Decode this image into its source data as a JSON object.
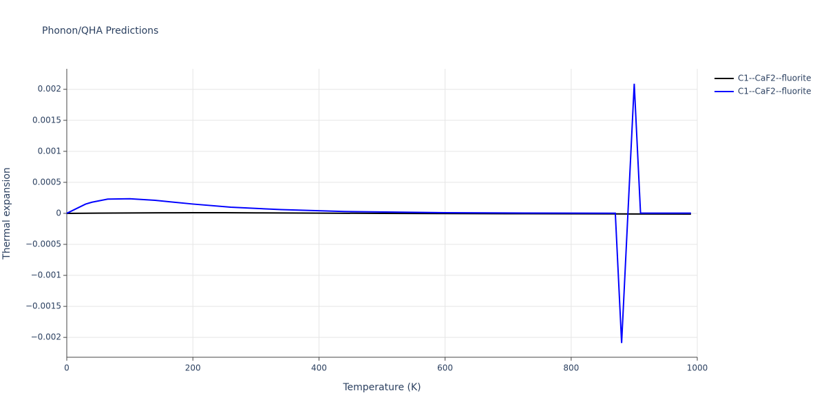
{
  "chart_data": {
    "type": "line",
    "title": "Phonon/QHA Predictions",
    "x_label": "Temperature (K)",
    "y_label": "Thermal expansion",
    "xlim": [
      0,
      1000
    ],
    "ylim": [
      -0.00232,
      0.00233
    ],
    "xticks": [
      0,
      200,
      400,
      600,
      800,
      1000
    ],
    "yticks": [
      {
        "value": -0.002,
        "label": "−0.002"
      },
      {
        "value": -0.0015,
        "label": "−0.0015"
      },
      {
        "value": -0.001,
        "label": "−0.001"
      },
      {
        "value": -0.0005,
        "label": "−0.0005"
      },
      0,
      0.0005,
      0.001,
      0.0015,
      0.002
    ],
    "grid": true,
    "legend": "right",
    "series": [
      {
        "name": "C1--CaF2--fluorite",
        "color": "#000000",
        "x": [
          0,
          50,
          100,
          150,
          200,
          250,
          300,
          400,
          500,
          600,
          700,
          800,
          900,
          990
        ],
        "values": [
          0,
          4e-06,
          7e-06,
          9e-06,
          1e-05,
          1e-05,
          8e-06,
          4e-06,
          -1e-06,
          -4e-06,
          -6e-06,
          -8e-06,
          -1e-05,
          -1.1e-05
        ]
      },
      {
        "name": "C1--CaF2--fluorite",
        "color": "#0000ff",
        "x": [
          0,
          10,
          30,
          40,
          65,
          100,
          140,
          200,
          260,
          340,
          440,
          600,
          800,
          870,
          880,
          900,
          910,
          990
        ],
        "values": [
          0,
          5e-05,
          0.00015,
          0.00018,
          0.00023,
          0.000235,
          0.00021,
          0.00015,
          0.0001,
          6e-05,
          3e-05,
          1e-05,
          3e-06,
          2e-06,
          -0.00209,
          0.00209,
          3e-06,
          3e-06
        ]
      }
    ]
  }
}
